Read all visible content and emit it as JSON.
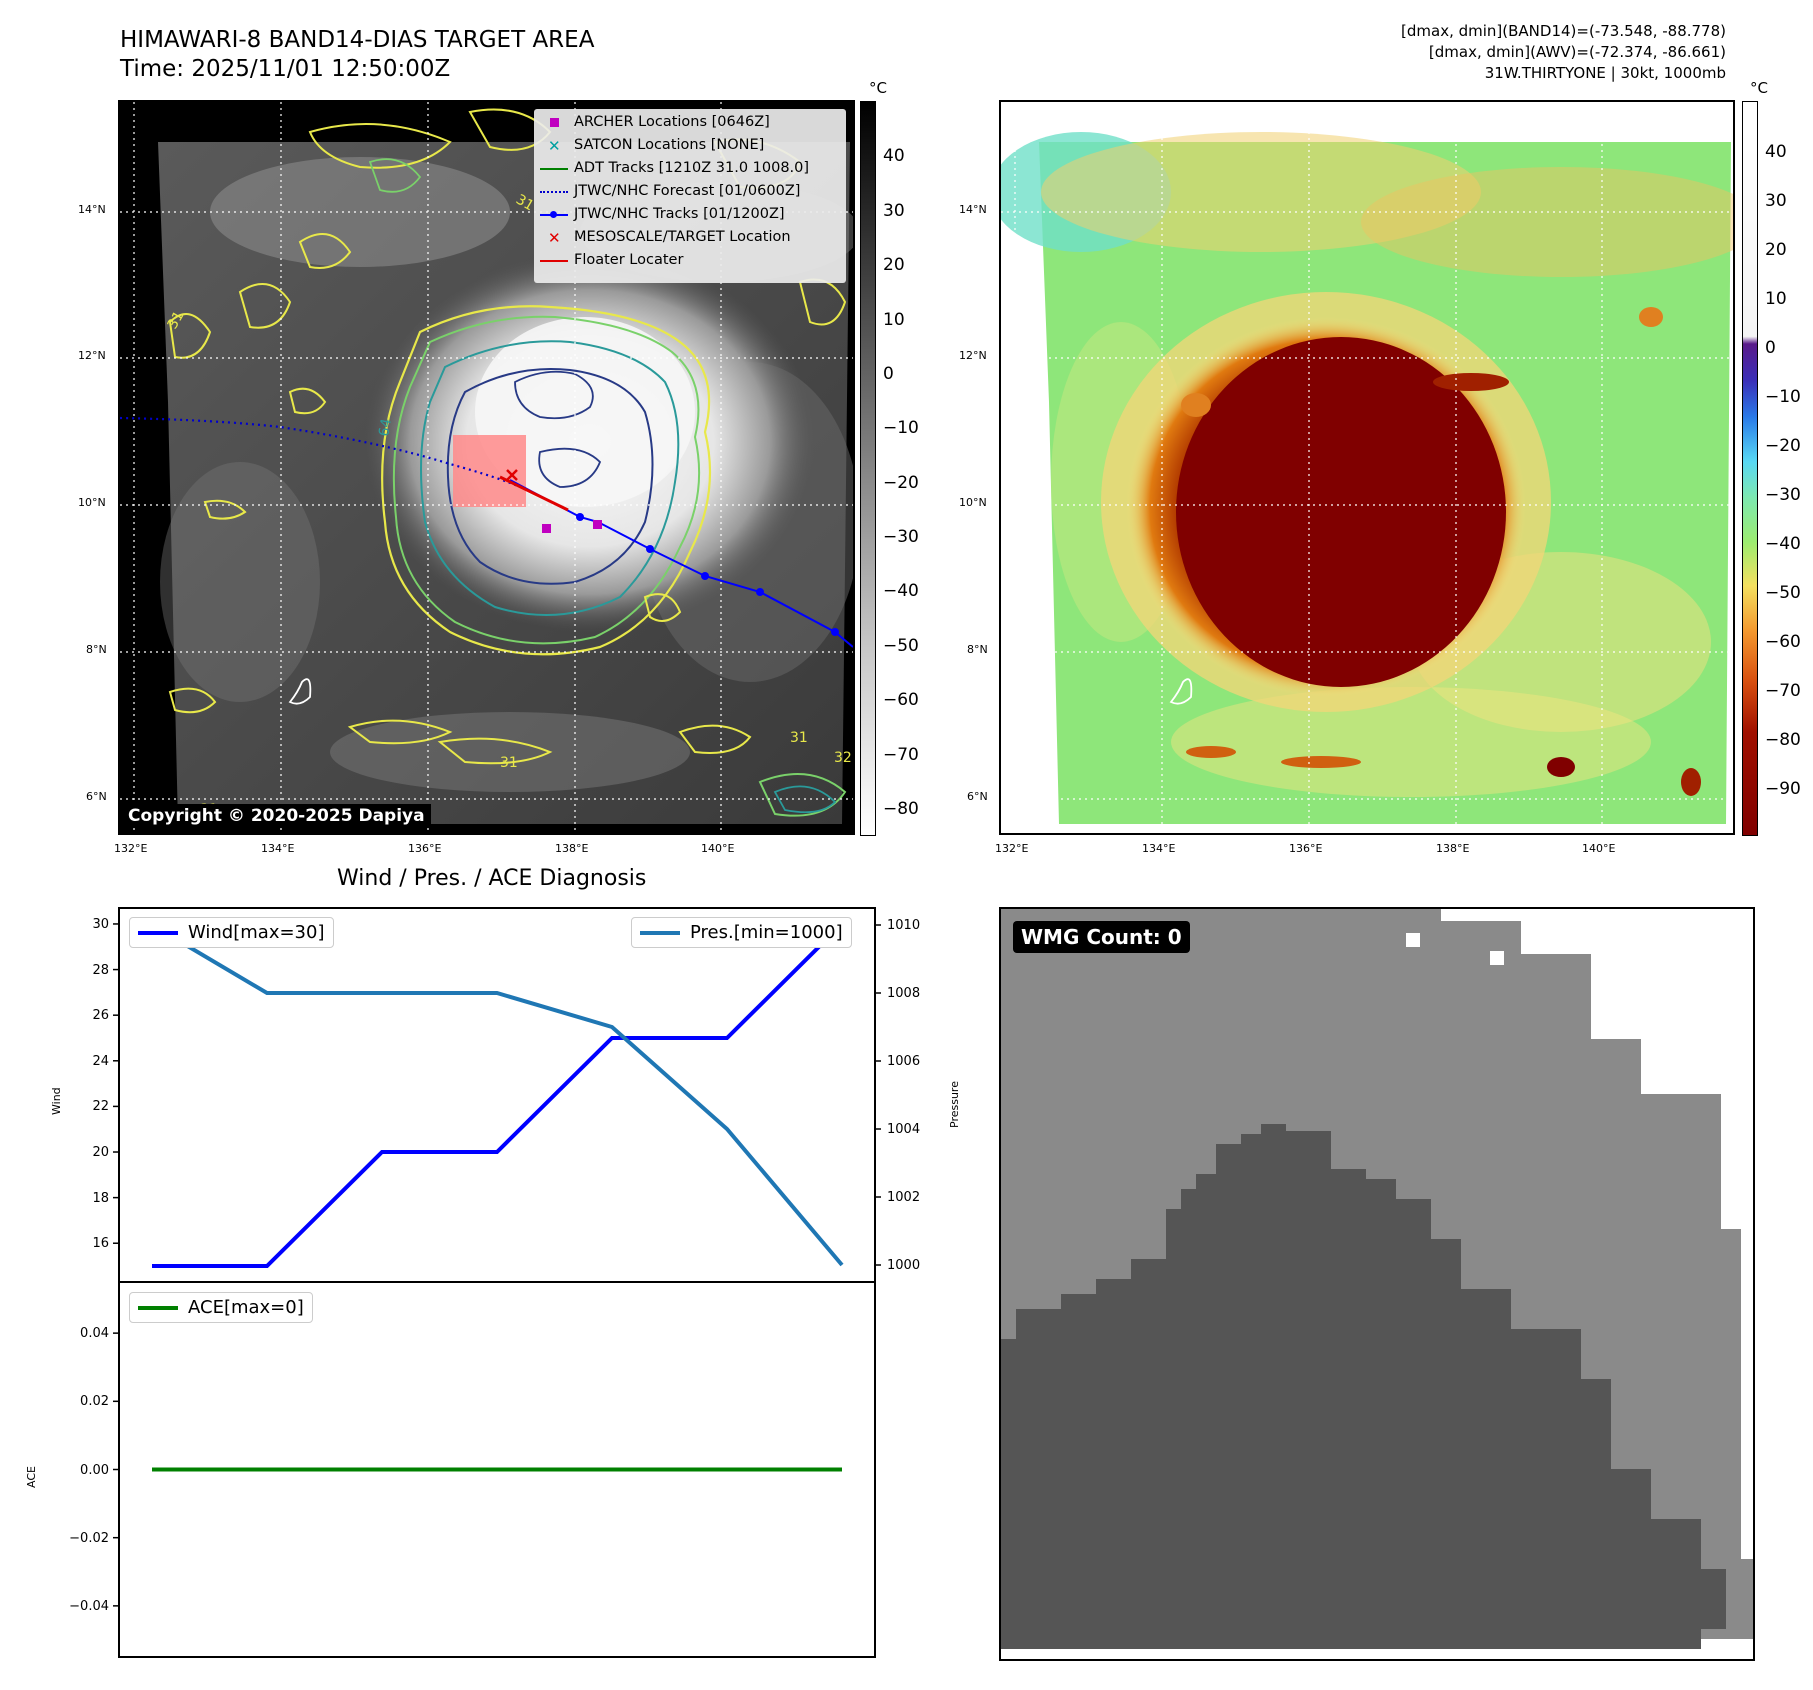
{
  "header": {
    "title_line1": "HIMAWARI-8 BAND14-DIAS TARGET AREA",
    "title_line2": "Time: 2025/11/01 12:50:00Z",
    "info_line1": "[dmax, dmin](BAND14)=(-73.548, -88.778)",
    "info_line2": "[dmax, dmin](AWV)=(-72.374, -86.661)",
    "info_line3": "31W.THIRTYONE | 30kt, 1000mb"
  },
  "map_panels": {
    "lon_ticks": [
      "132°E",
      "134°E",
      "136°E",
      "138°E",
      "140°E"
    ],
    "lat_ticks": [
      "14°N",
      "12°N",
      "10°N",
      "8°N",
      "6°N"
    ],
    "colorbar_unit": "°C",
    "band14_colorbar_ticks": [
      "40",
      "30",
      "20",
      "10",
      "0",
      "−10",
      "−20",
      "−30",
      "−40",
      "−50",
      "−60",
      "−70",
      "−80"
    ],
    "awv_colorbar_ticks": [
      "40",
      "30",
      "20",
      "10",
      "0",
      "−10",
      "−20",
      "−30",
      "−40",
      "−50",
      "−60",
      "−70",
      "−80",
      "−90"
    ],
    "copyright": "Copyright © 2020-2025 Dapiya",
    "contour_labels": [
      "31",
      "31",
      "64",
      "31",
      "31",
      "31",
      "32"
    ]
  },
  "legend": {
    "items": [
      {
        "label": "ARCHER Locations [0646Z]",
        "symbol": "square",
        "color": "#c000c0"
      },
      {
        "label": "SATCON Locations [NONE]",
        "symbol": "x",
        "color": "#00a0a0"
      },
      {
        "label": "ADT Tracks [1210Z 31.0 1008.0]",
        "symbol": "line",
        "color": "#008000"
      },
      {
        "label": "JTWC/NHC Forecast [01/0600Z]",
        "symbol": "dotted",
        "color": "#0000cc"
      },
      {
        "label": "JTWC/NHC Tracks [01/1200Z]",
        "symbol": "line-dot",
        "color": "#0000ff"
      },
      {
        "label": "MESOSCALE/TARGET Location",
        "symbol": "x",
        "color": "#e00000"
      },
      {
        "label": "Floater Locater",
        "symbol": "line",
        "color": "#e00000"
      }
    ]
  },
  "diagnosis": {
    "title": "Wind / Pres. / ACE Diagnosis",
    "wind_ylabel": "Wind",
    "pressure_ylabel": "Pressure",
    "ace_ylabel": "ACE",
    "wind_legend": "Wind[max=30]",
    "pres_legend": "Pres.[min=1000]",
    "ace_legend": "ACE[max=0]",
    "wind_ticks": [
      "30",
      "28",
      "26",
      "24",
      "22",
      "20",
      "18",
      "16"
    ],
    "pres_ticks": [
      "1010",
      "1008",
      "1006",
      "1004",
      "1002",
      "1000"
    ],
    "ace_ticks": [
      "0.04",
      "0.02",
      "0.00",
      "−0.02",
      "−0.04"
    ]
  },
  "wmg": {
    "badge": "WMG Count: 0"
  },
  "chart_data": [
    {
      "type": "line",
      "title": "Wind / Pres. / ACE Diagnosis",
      "x": [
        0,
        1,
        2,
        3,
        4,
        5,
        6
      ],
      "series": [
        {
          "name": "Wind[max=30]",
          "axis": "left",
          "color": "#0000ff",
          "values": [
            15,
            15,
            20,
            20,
            25,
            25,
            30
          ]
        },
        {
          "name": "Pres.[min=1000]",
          "axis": "right",
          "color": "#1f77b4",
          "values": [
            1010,
            1008,
            1008,
            1008,
            1007,
            1004,
            1000
          ]
        }
      ],
      "ylabel": "Wind",
      "ylim": [
        14.3,
        30.7
      ],
      "y2label": "Pressure",
      "y2lim": [
        999.5,
        1010.5
      ],
      "legend": "top-left / top-right"
    },
    {
      "type": "line",
      "x": [
        0,
        1,
        2,
        3,
        4,
        5,
        6
      ],
      "series": [
        {
          "name": "ACE[max=0]",
          "color": "#008000",
          "values": [
            0,
            0,
            0,
            0,
            0,
            0,
            0
          ]
        }
      ],
      "ylabel": "ACE",
      "ylim": [
        -0.055,
        0.055
      ],
      "legend": "top-left"
    }
  ]
}
